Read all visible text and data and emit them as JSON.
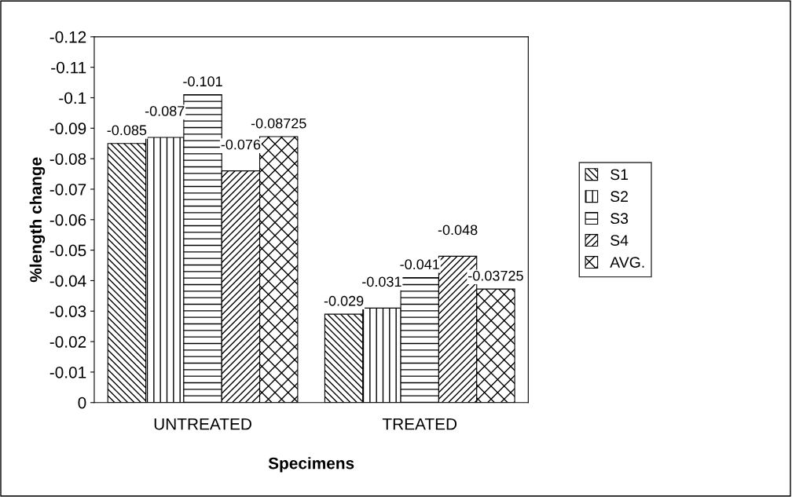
{
  "chart_data": {
    "type": "bar",
    "xlabel": "Specimens",
    "ylabel": "%length change",
    "categories": [
      "UNTREATED",
      "TREATED"
    ],
    "series": [
      {
        "name": "S1",
        "color": "#000000",
        "values": [
          -0.085,
          -0.029
        ]
      },
      {
        "name": "S2",
        "color": "#000000",
        "values": [
          -0.087,
          -0.031
        ]
      },
      {
        "name": "S3",
        "color": "#000000",
        "values": [
          -0.101,
          -0.041
        ]
      },
      {
        "name": "S4",
        "color": "#000000",
        "values": [
          -0.076,
          -0.048
        ]
      },
      {
        "name": "AVG.",
        "color": "#000000",
        "values": [
          -0.08725,
          -0.03725
        ]
      }
    ],
    "ylim": [
      0,
      -0.12
    ],
    "yticks": [
      0,
      -0.01,
      -0.02,
      -0.03,
      -0.04,
      -0.05,
      -0.06,
      -0.07,
      -0.08,
      -0.09,
      -0.1,
      -0.11,
      -0.12
    ],
    "data_labels": true,
    "grid": false,
    "legend": "right"
  }
}
